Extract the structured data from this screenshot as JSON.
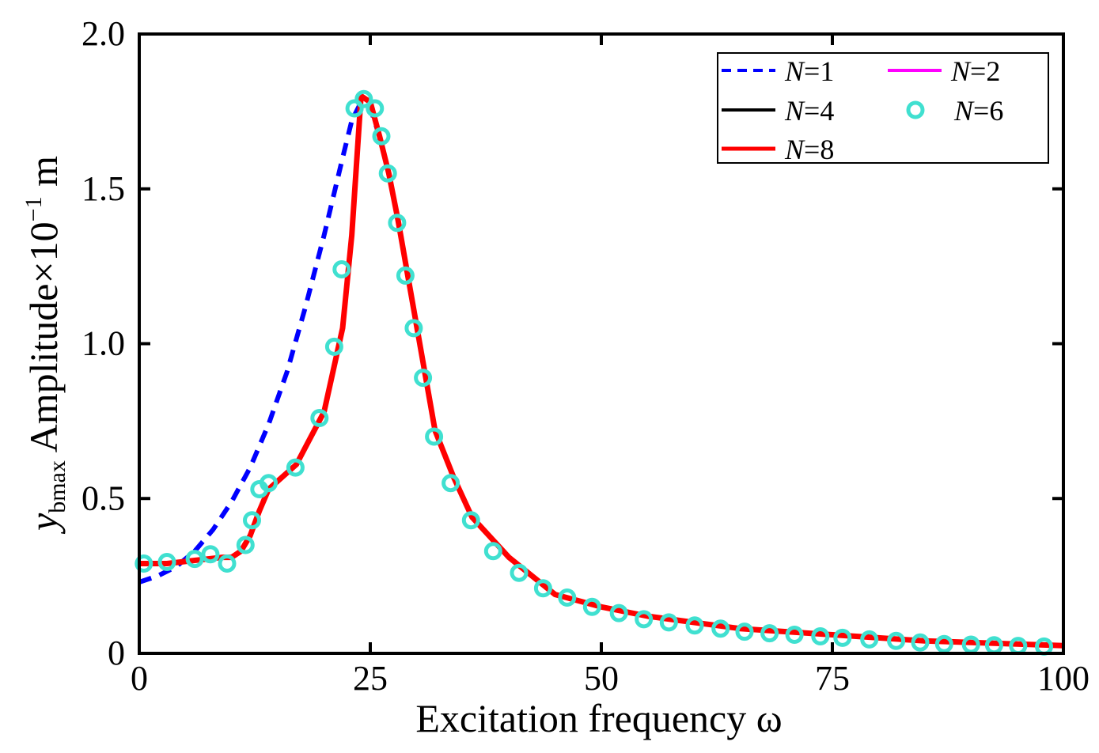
{
  "chart_data": {
    "type": "line",
    "xlabel": "Excitation frequency ω",
    "ylabel": "Amplitude",
    "ylabel_var": "y",
    "ylabel_sub": "bmax",
    "ylabel_unit_base": "×10",
    "ylabel_unit_exp": "−1",
    "ylabel_unit": " m",
    "xlim": [
      0,
      100
    ],
    "ylim": [
      0,
      2.0
    ],
    "xticks": [
      0,
      25,
      50,
      75,
      100
    ],
    "xtick_labels": [
      "0",
      "25",
      "50",
      "75",
      "100"
    ],
    "yticks": [
      0,
      0.5,
      1.0,
      1.5,
      2.0
    ],
    "ytick_labels": [
      "0",
      "0.5",
      "1.0",
      "1.5",
      "2.0"
    ],
    "legend_position": "top-right",
    "legend": [
      {
        "var": "N",
        "eq": "=1"
      },
      {
        "var": "N",
        "eq": "=2"
      },
      {
        "var": "N",
        "eq": "=4"
      },
      {
        "var": "N",
        "eq": "=6"
      },
      {
        "var": "N",
        "eq": "=8"
      }
    ],
    "series": [
      {
        "name": "N=1",
        "style": "dashed",
        "color": "#0000ff",
        "x": [
          0,
          2,
          4,
          6,
          8,
          10,
          12,
          14,
          16,
          18,
          20,
          22,
          23,
          24,
          25,
          26,
          27,
          28,
          29,
          30,
          32,
          34,
          36,
          40,
          45,
          50,
          55,
          60,
          65,
          70,
          75,
          80,
          85,
          90,
          95,
          100
        ],
        "y": [
          0.23,
          0.25,
          0.28,
          0.33,
          0.4,
          0.49,
          0.6,
          0.74,
          0.91,
          1.12,
          1.35,
          1.6,
          1.72,
          1.78,
          1.76,
          1.67,
          1.55,
          1.4,
          1.23,
          1.06,
          0.72,
          0.57,
          0.44,
          0.31,
          0.19,
          0.15,
          0.12,
          0.1,
          0.08,
          0.07,
          0.06,
          0.05,
          0.04,
          0.035,
          0.03,
          0.025
        ]
      },
      {
        "name": "N=2",
        "style": "solid",
        "color": "#ff00ff",
        "x": [
          0,
          3,
          6,
          9,
          10,
          11,
          12,
          13,
          14,
          17,
          20,
          22,
          23,
          24,
          25,
          26,
          27,
          28,
          29,
          30,
          32,
          34,
          36,
          40,
          45,
          50,
          55,
          60,
          65,
          70,
          75,
          80,
          85,
          90,
          95,
          100
        ],
        "y": [
          0.29,
          0.29,
          0.3,
          0.31,
          0.31,
          0.33,
          0.38,
          0.46,
          0.53,
          0.61,
          0.78,
          1.05,
          1.35,
          1.8,
          1.78,
          1.67,
          1.55,
          1.4,
          1.23,
          1.06,
          0.72,
          0.57,
          0.44,
          0.31,
          0.19,
          0.15,
          0.12,
          0.1,
          0.08,
          0.07,
          0.06,
          0.05,
          0.04,
          0.035,
          0.03,
          0.025
        ]
      },
      {
        "name": "N=4",
        "style": "solid",
        "color": "#000000",
        "x": [
          0,
          3,
          6,
          9,
          10,
          11,
          12,
          13,
          14,
          17,
          20,
          22,
          23,
          24,
          25,
          26,
          27,
          28,
          29,
          30,
          32,
          34,
          36,
          40,
          45,
          50,
          55,
          60,
          65,
          70,
          75,
          80,
          85,
          90,
          95,
          100
        ],
        "y": [
          0.29,
          0.29,
          0.3,
          0.31,
          0.31,
          0.33,
          0.38,
          0.46,
          0.53,
          0.61,
          0.78,
          1.05,
          1.35,
          1.8,
          1.78,
          1.67,
          1.55,
          1.4,
          1.23,
          1.06,
          0.72,
          0.57,
          0.44,
          0.31,
          0.19,
          0.15,
          0.12,
          0.1,
          0.08,
          0.07,
          0.06,
          0.05,
          0.04,
          0.035,
          0.03,
          0.025
        ]
      },
      {
        "name": "N=8",
        "style": "solid",
        "color": "#ff0000",
        "x": [
          0,
          3,
          6,
          9,
          10,
          11,
          12,
          13,
          14,
          17,
          20,
          22,
          23,
          24,
          25,
          26,
          27,
          28,
          29,
          30,
          32,
          34,
          36,
          40,
          45,
          50,
          55,
          60,
          65,
          70,
          75,
          80,
          85,
          90,
          95,
          100
        ],
        "y": [
          0.29,
          0.29,
          0.3,
          0.31,
          0.31,
          0.33,
          0.38,
          0.46,
          0.53,
          0.61,
          0.78,
          1.05,
          1.35,
          1.8,
          1.78,
          1.67,
          1.55,
          1.4,
          1.23,
          1.06,
          0.72,
          0.57,
          0.44,
          0.31,
          0.19,
          0.15,
          0.12,
          0.1,
          0.08,
          0.07,
          0.06,
          0.05,
          0.04,
          0.035,
          0.03,
          0.025
        ]
      },
      {
        "name": "N=6",
        "style": "markers",
        "color": "#40e0d0",
        "x": [
          0.5,
          3,
          6,
          7.7,
          9.5,
          11.5,
          12.2,
          13,
          14,
          16.9,
          19.5,
          21.1,
          21.9,
          23.3,
          24.3,
          25.5,
          26.2,
          26.9,
          27.9,
          28.8,
          29.7,
          30.7,
          31.9,
          33.7,
          35.9,
          38.3,
          41.1,
          43.7,
          46.3,
          49,
          51.9,
          54.6,
          57.3,
          60.1,
          62.9,
          65.5,
          68.2,
          70.9,
          73.7,
          76.1,
          79,
          81.9,
          84.5,
          87.1,
          90,
          92.5,
          95.1,
          97.9
        ],
        "y": [
          0.29,
          0.295,
          0.305,
          0.32,
          0.29,
          0.35,
          0.43,
          0.53,
          0.55,
          0.6,
          0.76,
          0.99,
          1.24,
          1.76,
          1.79,
          1.76,
          1.67,
          1.55,
          1.39,
          1.22,
          1.05,
          0.89,
          0.7,
          0.55,
          0.43,
          0.33,
          0.26,
          0.21,
          0.18,
          0.15,
          0.13,
          0.11,
          0.1,
          0.09,
          0.08,
          0.07,
          0.065,
          0.06,
          0.055,
          0.05,
          0.045,
          0.04,
          0.035,
          0.03,
          0.028,
          0.026,
          0.024,
          0.022
        ]
      }
    ]
  }
}
